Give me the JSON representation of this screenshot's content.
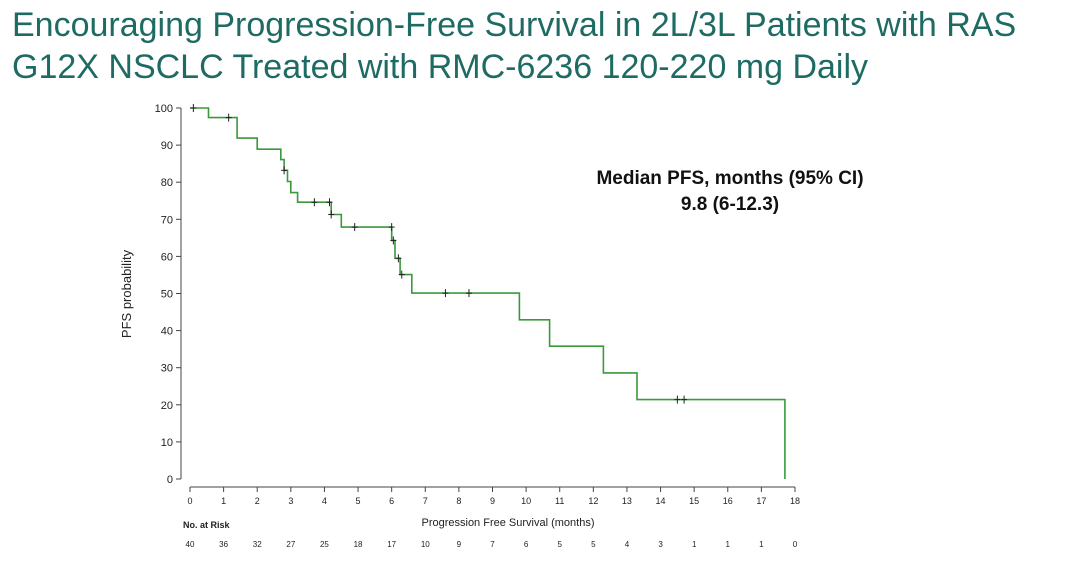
{
  "title": {
    "line1": "Encouraging Progression-Free Survival in 2L/3L Patients with RAS",
    "line2": "G12X NSCLC Treated with RMC-6236 120-220 mg Daily"
  },
  "annotation": {
    "label": "Median PFS, months (95% CI)",
    "value": "9.8 (6-12.3)"
  },
  "colors": {
    "title": "#1e6b63",
    "curve": "#3a9a3a",
    "axis": "#444444"
  },
  "chart_data": {
    "type": "line",
    "subtype": "kaplan-meier step",
    "xlabel": "Progression Free Survival (months)",
    "ylabel": "PFS probability",
    "xlim": [
      0,
      18
    ],
    "ylim": [
      0,
      100
    ],
    "xticks": [
      0,
      1,
      2,
      3,
      4,
      5,
      6,
      7,
      8,
      9,
      10,
      11,
      12,
      13,
      14,
      15,
      16,
      17,
      18
    ],
    "yticks": [
      0,
      10,
      20,
      30,
      40,
      50,
      60,
      70,
      80,
      90,
      100
    ],
    "grid": false,
    "series": [
      {
        "x": [
          0,
          0.55,
          0.55,
          1.4,
          1.4,
          2.0,
          2.0,
          2.7,
          2.7,
          2.8,
          2.8,
          2.9,
          2.9,
          3.0,
          3.0,
          3.2,
          3.2,
          4.2,
          4.2,
          4.5,
          4.5,
          6.0,
          6.0,
          6.1,
          6.1,
          6.25,
          6.25,
          6.6,
          6.6,
          9.8,
          9.8,
          10.7,
          10.7,
          12.3,
          12.3,
          13.3,
          13.3,
          17.7,
          17.7
        ],
        "y": [
          100,
          100,
          97.4,
          97.4,
          91.9,
          91.9,
          88.9,
          88.9,
          86.1,
          86.1,
          83.2,
          83.2,
          80.2,
          80.2,
          77.2,
          77.2,
          74.6,
          74.6,
          71.3,
          71.3,
          67.9,
          67.9,
          64.3,
          64.3,
          59.5,
          59.5,
          55.1,
          55.1,
          50.1,
          50.1,
          42.9,
          42.9,
          35.8,
          35.8,
          28.6,
          28.6,
          21.4,
          21.4,
          0
        ]
      }
    ],
    "censored": {
      "x": [
        0.1,
        1.15,
        2.8,
        3.7,
        4.15,
        4.2,
        4.9,
        6.0,
        6.05,
        6.2,
        6.3,
        7.6,
        8.3,
        14.5,
        14.7
      ],
      "y": [
        100,
        97.4,
        83.2,
        74.6,
        74.6,
        71.3,
        67.9,
        67.9,
        64.3,
        59.5,
        55.1,
        50.1,
        50.1,
        21.4,
        21.4
      ]
    },
    "risk_table": {
      "label": "No. at Risk",
      "months": [
        0,
        1,
        2,
        3,
        4,
        5,
        6,
        7,
        8,
        9,
        10,
        11,
        12,
        13,
        14,
        15,
        16,
        17,
        18
      ],
      "counts": [
        "40",
        "36",
        "32",
        "27",
        "25",
        "18",
        "17",
        "10",
        "9",
        "7",
        "6",
        "5",
        "5",
        "4",
        "3",
        "1",
        "1",
        "1",
        "0"
      ]
    }
  }
}
